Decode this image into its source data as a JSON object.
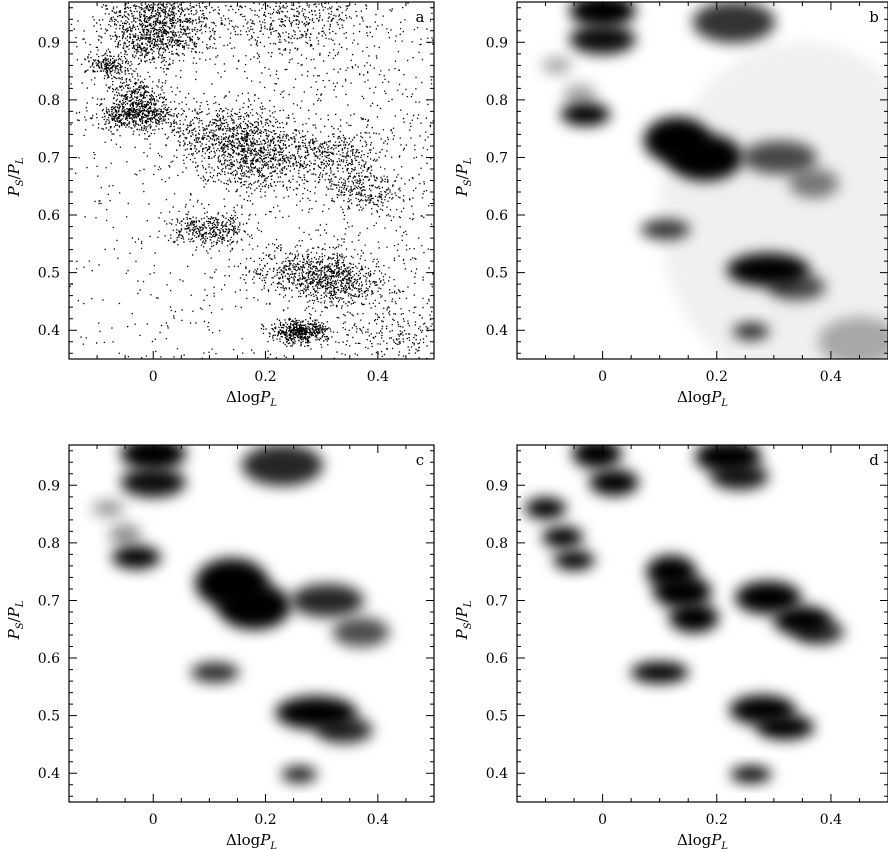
{
  "chart_data": [
    {
      "type": "heatmap",
      "panel_label": "a",
      "rendering": "scatter-points",
      "xlabel_parts": [
        "Δlog",
        "P",
        "L"
      ],
      "ylabel_parts": [
        "P",
        "S",
        "/",
        "P",
        "L"
      ],
      "xlim": [
        -0.15,
        0.5
      ],
      "ylim": [
        0.35,
        0.97
      ],
      "xticks": [
        0,
        0.2,
        0.4
      ],
      "xtick_labels": [
        "0",
        "0.2",
        "0.4"
      ],
      "yticks": [
        0.4,
        0.5,
        0.6,
        0.7,
        0.8,
        0.9
      ],
      "ytick_labels": [
        "0.4",
        "0.5",
        "0.6",
        "0.7",
        "0.8",
        "0.9"
      ],
      "clusters": [
        {
          "x": 0.01,
          "y": 0.95,
          "sx": 0.05,
          "sy": 0.025,
          "w": 0.9
        },
        {
          "x": 0.0,
          "y": 0.905,
          "sx": 0.045,
          "sy": 0.02,
          "w": 0.8
        },
        {
          "x": 0.24,
          "y": 0.94,
          "sx": 0.06,
          "sy": 0.03,
          "w": 0.6
        },
        {
          "x": -0.08,
          "y": 0.86,
          "sx": 0.02,
          "sy": 0.012,
          "w": 0.3
        },
        {
          "x": -0.03,
          "y": 0.81,
          "sx": 0.025,
          "sy": 0.015,
          "w": 0.35
        },
        {
          "x": -0.03,
          "y": 0.775,
          "sx": 0.035,
          "sy": 0.013,
          "w": 0.85
        },
        {
          "x": 0.13,
          "y": 0.74,
          "sx": 0.05,
          "sy": 0.03,
          "w": 0.9
        },
        {
          "x": 0.18,
          "y": 0.7,
          "sx": 0.05,
          "sy": 0.03,
          "w": 0.95
        },
        {
          "x": 0.31,
          "y": 0.705,
          "sx": 0.05,
          "sy": 0.022,
          "w": 0.5
        },
        {
          "x": 0.37,
          "y": 0.645,
          "sx": 0.035,
          "sy": 0.02,
          "w": 0.4
        },
        {
          "x": 0.1,
          "y": 0.575,
          "sx": 0.035,
          "sy": 0.014,
          "w": 0.55
        },
        {
          "x": 0.29,
          "y": 0.505,
          "sx": 0.055,
          "sy": 0.02,
          "w": 0.9
        },
        {
          "x": 0.33,
          "y": 0.475,
          "sx": 0.04,
          "sy": 0.018,
          "w": 0.5
        },
        {
          "x": 0.26,
          "y": 0.398,
          "sx": 0.025,
          "sy": 0.01,
          "w": 0.75
        },
        {
          "x": 0.43,
          "y": 0.39,
          "sx": 0.06,
          "sy": 0.03,
          "w": 0.3
        }
      ]
    },
    {
      "type": "heatmap",
      "panel_label": "b",
      "rendering": "smooth-density",
      "xlabel_parts": [
        "Δlog",
        "P",
        "L"
      ],
      "ylabel_parts": [
        "P",
        "S",
        "/",
        "P",
        "L"
      ],
      "xlim": [
        -0.15,
        0.5
      ],
      "ylim": [
        0.35,
        0.97
      ],
      "xticks": [
        0,
        0.2,
        0.4
      ],
      "xtick_labels": [
        "0",
        "0.2",
        "0.4"
      ],
      "yticks": [
        0.4,
        0.5,
        0.6,
        0.7,
        0.8,
        0.9
      ],
      "ytick_labels": [
        "0.4",
        "0.5",
        "0.6",
        "0.7",
        "0.8",
        "0.9"
      ],
      "clusters": [
        {
          "x": 0.0,
          "y": 0.955,
          "sx": 0.04,
          "sy": 0.02,
          "w": 1.0
        },
        {
          "x": 0.0,
          "y": 0.905,
          "sx": 0.04,
          "sy": 0.018,
          "w": 0.95
        },
        {
          "x": 0.23,
          "y": 0.935,
          "sx": 0.05,
          "sy": 0.025,
          "w": 0.8
        },
        {
          "x": -0.08,
          "y": 0.86,
          "sx": 0.018,
          "sy": 0.01,
          "w": 0.35
        },
        {
          "x": -0.04,
          "y": 0.81,
          "sx": 0.02,
          "sy": 0.012,
          "w": 0.35
        },
        {
          "x": -0.03,
          "y": 0.775,
          "sx": 0.03,
          "sy": 0.014,
          "w": 1.0
        },
        {
          "x": 0.13,
          "y": 0.73,
          "sx": 0.04,
          "sy": 0.028,
          "w": 1.0
        },
        {
          "x": 0.18,
          "y": 0.7,
          "sx": 0.045,
          "sy": 0.028,
          "w": 1.0
        },
        {
          "x": 0.31,
          "y": 0.7,
          "sx": 0.045,
          "sy": 0.02,
          "w": 0.7
        },
        {
          "x": 0.37,
          "y": 0.655,
          "sx": 0.03,
          "sy": 0.018,
          "w": 0.5
        },
        {
          "x": 0.11,
          "y": 0.575,
          "sx": 0.03,
          "sy": 0.012,
          "w": 0.8
        },
        {
          "x": 0.29,
          "y": 0.505,
          "sx": 0.05,
          "sy": 0.02,
          "w": 1.0
        },
        {
          "x": 0.34,
          "y": 0.475,
          "sx": 0.035,
          "sy": 0.016,
          "w": 0.7
        },
        {
          "x": 0.26,
          "y": 0.398,
          "sx": 0.022,
          "sy": 0.01,
          "w": 0.85
        },
        {
          "x": 0.45,
          "y": 0.38,
          "sx": 0.05,
          "sy": 0.03,
          "w": 0.3
        }
      ]
    },
    {
      "type": "heatmap",
      "panel_label": "c",
      "rendering": "smooth-density",
      "xlabel_parts": [
        "Δlog",
        "P",
        "L"
      ],
      "ylabel_parts": [
        "P",
        "S",
        "/",
        "P",
        "L"
      ],
      "xlim": [
        -0.15,
        0.5
      ],
      "ylim": [
        0.35,
        0.97
      ],
      "xticks": [
        0,
        0.2,
        0.4
      ],
      "xtick_labels": [
        "0",
        "0.2",
        "0.4"
      ],
      "yticks": [
        0.4,
        0.5,
        0.6,
        0.7,
        0.8,
        0.9
      ],
      "ytick_labels": [
        "0.4",
        "0.5",
        "0.6",
        "0.7",
        "0.8",
        "0.9"
      ],
      "clusters": [
        {
          "x": 0.0,
          "y": 0.955,
          "sx": 0.04,
          "sy": 0.02,
          "w": 1.0
        },
        {
          "x": 0.0,
          "y": 0.905,
          "sx": 0.04,
          "sy": 0.018,
          "w": 0.95
        },
        {
          "x": 0.23,
          "y": 0.935,
          "sx": 0.05,
          "sy": 0.025,
          "w": 0.85
        },
        {
          "x": -0.08,
          "y": 0.86,
          "sx": 0.02,
          "sy": 0.01,
          "w": 0.4
        },
        {
          "x": -0.05,
          "y": 0.815,
          "sx": 0.02,
          "sy": 0.012,
          "w": 0.45
        },
        {
          "x": -0.03,
          "y": 0.775,
          "sx": 0.03,
          "sy": 0.014,
          "w": 1.0
        },
        {
          "x": 0.14,
          "y": 0.73,
          "sx": 0.045,
          "sy": 0.03,
          "w": 1.0
        },
        {
          "x": 0.18,
          "y": 0.69,
          "sx": 0.045,
          "sy": 0.028,
          "w": 1.0
        },
        {
          "x": 0.31,
          "y": 0.7,
          "sx": 0.045,
          "sy": 0.02,
          "w": 0.85
        },
        {
          "x": 0.37,
          "y": 0.645,
          "sx": 0.035,
          "sy": 0.018,
          "w": 0.7
        },
        {
          "x": 0.11,
          "y": 0.575,
          "sx": 0.03,
          "sy": 0.012,
          "w": 0.85
        },
        {
          "x": 0.29,
          "y": 0.505,
          "sx": 0.05,
          "sy": 0.02,
          "w": 1.0
        },
        {
          "x": 0.34,
          "y": 0.475,
          "sx": 0.035,
          "sy": 0.016,
          "w": 0.85
        },
        {
          "x": 0.26,
          "y": 0.398,
          "sx": 0.022,
          "sy": 0.01,
          "w": 0.9
        }
      ]
    },
    {
      "type": "heatmap",
      "panel_label": "d",
      "rendering": "smooth-density",
      "xlabel_parts": [
        "Δlog",
        "P",
        "L"
      ],
      "ylabel_parts": [
        "P",
        "S",
        "/",
        "P",
        "L"
      ],
      "xlim": [
        -0.15,
        0.5
      ],
      "ylim": [
        0.35,
        0.97
      ],
      "xticks": [
        0,
        0.2,
        0.4
      ],
      "xtick_labels": [
        "0",
        "0.2",
        "0.4"
      ],
      "yticks": [
        0.4,
        0.5,
        0.6,
        0.7,
        0.8,
        0.9
      ],
      "ytick_labels": [
        "0.4",
        "0.5",
        "0.6",
        "0.7",
        "0.8",
        "0.9"
      ],
      "clusters": [
        {
          "x": -0.01,
          "y": 0.955,
          "sx": 0.03,
          "sy": 0.018,
          "w": 1.0
        },
        {
          "x": 0.02,
          "y": 0.905,
          "sx": 0.03,
          "sy": 0.016,
          "w": 1.0
        },
        {
          "x": 0.22,
          "y": 0.95,
          "sx": 0.04,
          "sy": 0.02,
          "w": 1.0
        },
        {
          "x": 0.24,
          "y": 0.915,
          "sx": 0.035,
          "sy": 0.016,
          "w": 0.9
        },
        {
          "x": -0.1,
          "y": 0.86,
          "sx": 0.025,
          "sy": 0.013,
          "w": 1.0
        },
        {
          "x": -0.07,
          "y": 0.81,
          "sx": 0.025,
          "sy": 0.013,
          "w": 1.0
        },
        {
          "x": -0.05,
          "y": 0.77,
          "sx": 0.025,
          "sy": 0.012,
          "w": 1.0
        },
        {
          "x": 0.12,
          "y": 0.75,
          "sx": 0.03,
          "sy": 0.02,
          "w": 1.0
        },
        {
          "x": 0.14,
          "y": 0.715,
          "sx": 0.035,
          "sy": 0.02,
          "w": 1.0
        },
        {
          "x": 0.16,
          "y": 0.67,
          "sx": 0.03,
          "sy": 0.018,
          "w": 1.0
        },
        {
          "x": 0.29,
          "y": 0.705,
          "sx": 0.04,
          "sy": 0.02,
          "w": 1.0
        },
        {
          "x": 0.35,
          "y": 0.665,
          "sx": 0.035,
          "sy": 0.018,
          "w": 1.0
        },
        {
          "x": 0.38,
          "y": 0.645,
          "sx": 0.03,
          "sy": 0.015,
          "w": 0.8
        },
        {
          "x": 0.1,
          "y": 0.575,
          "sx": 0.035,
          "sy": 0.013,
          "w": 1.0
        },
        {
          "x": 0.28,
          "y": 0.51,
          "sx": 0.04,
          "sy": 0.018,
          "w": 1.0
        },
        {
          "x": 0.32,
          "y": 0.48,
          "sx": 0.035,
          "sy": 0.015,
          "w": 1.0
        },
        {
          "x": 0.26,
          "y": 0.398,
          "sx": 0.025,
          "sy": 0.01,
          "w": 1.0
        }
      ]
    }
  ]
}
